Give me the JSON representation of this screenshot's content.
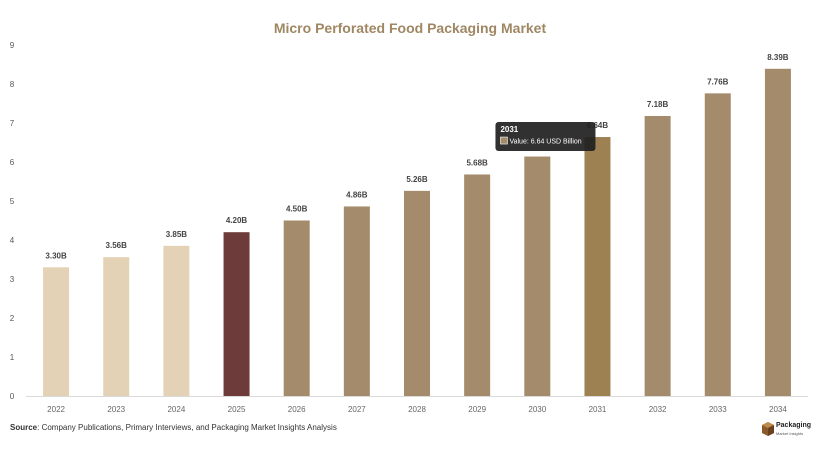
{
  "chart_data": {
    "type": "bar",
    "title": "Micro Perforated Food Packaging Market",
    "categories": [
      "2022",
      "2023",
      "2024",
      "2025",
      "2026",
      "2027",
      "2028",
      "2029",
      "2030",
      "2031",
      "2032",
      "2033",
      "2034"
    ],
    "values": [
      3.3,
      3.56,
      3.85,
      4.2,
      4.5,
      4.86,
      5.26,
      5.68,
      6.14,
      6.64,
      7.18,
      7.76,
      8.39
    ],
    "data_labels": [
      "3.30B",
      "3.56B",
      "3.85B",
      "4.20B",
      "4.50B",
      "4.86B",
      "5.26B",
      "5.68B",
      "",
      "6.64B",
      "7.18B",
      "7.76B",
      "8.39B"
    ],
    "ylim": [
      0,
      9
    ],
    "yticks": [
      0,
      1,
      2,
      3,
      4,
      5,
      6,
      7,
      8,
      9
    ],
    "grid": false,
    "legend": "none",
    "colors": {
      "historical": "#e3d2b5",
      "current": "#6e3b3b",
      "forecast": "#a38b6c",
      "hovered": "#9e8153"
    },
    "bar_groups": [
      "historical",
      "historical",
      "historical",
      "current",
      "forecast",
      "forecast",
      "forecast",
      "forecast",
      "forecast",
      "hovered",
      "forecast",
      "forecast",
      "forecast"
    ],
    "tooltip": {
      "category": "2031",
      "title": "2031",
      "text": "Value: 6.64 USD Billion"
    }
  },
  "footer": {
    "source_label": "Source",
    "source_text": ": Company Publications, Primary Interviews, and Packaging Market Insights Analysis"
  },
  "brand": {
    "name": "Packaging",
    "tagline": "Market Insights",
    "icon": "box-icon",
    "color": "#8a5a2b"
  }
}
